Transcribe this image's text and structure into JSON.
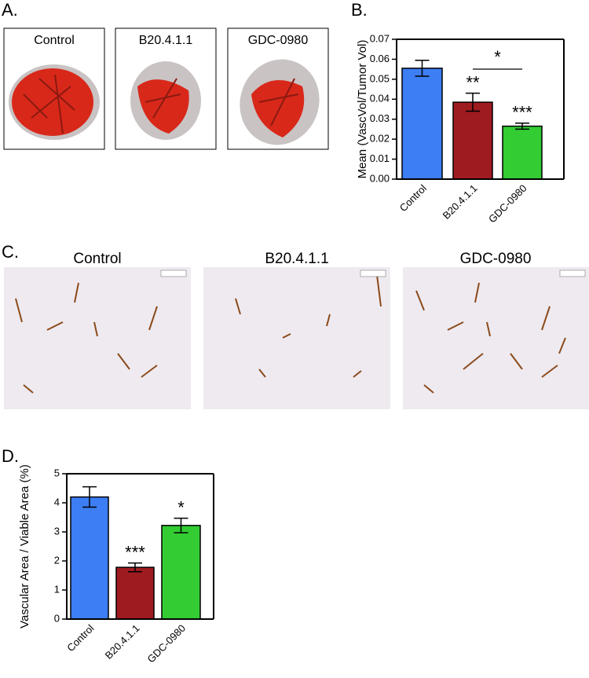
{
  "panels": {
    "a": {
      "label": "A.",
      "images": [
        "Control",
        "B20.4.1.1",
        "GDC-0980"
      ]
    },
    "b": {
      "label": "B."
    },
    "c": {
      "label": "C.",
      "images": [
        "Control",
        "B20.4.1.1",
        "GDC-0980"
      ]
    },
    "d": {
      "label": "D."
    }
  },
  "chart_data": [
    {
      "type": "bar",
      "ylabel": "Mean (VascVol/Tumor Vol)",
      "categories": [
        "Control",
        "B20.4.1.1",
        "GDC-0980"
      ],
      "values": [
        0.0555,
        0.0385,
        0.0265
      ],
      "errors": [
        0.004,
        0.0045,
        0.0015
      ],
      "colors": [
        "#3d7ef5",
        "#9e1b20",
        "#33cc33"
      ],
      "significance": [
        null,
        "**",
        "***"
      ],
      "bracket_label": "*",
      "ylim": [
        0,
        0.07
      ],
      "yticks": [
        {
          "value": 0,
          "label": "0.00"
        },
        {
          "value": 0.01,
          "label": "0.01"
        },
        {
          "value": 0.02,
          "label": "0.02"
        },
        {
          "value": 0.03,
          "label": "0.03"
        },
        {
          "value": 0.04,
          "label": "0.04"
        },
        {
          "value": 0.05,
          "label": "0.05"
        },
        {
          "value": 0.06,
          "label": "0.06"
        },
        {
          "value": 0.07,
          "label": "0.07"
        }
      ]
    },
    {
      "type": "bar",
      "ylabel": "Vascular Area / Viable Area (%)",
      "categories": [
        "Control",
        "B20.4.1.1",
        "GDC-0980"
      ],
      "values": [
        4.2,
        1.78,
        3.22
      ],
      "errors": [
        0.35,
        0.15,
        0.25
      ],
      "colors": [
        "#3d7ef5",
        "#9e1b20",
        "#33cc33"
      ],
      "significance": [
        null,
        "***",
        "*"
      ],
      "ylim": [
        0,
        5
      ],
      "yticks": [
        0,
        1,
        2,
        3,
        4,
        5
      ]
    }
  ]
}
